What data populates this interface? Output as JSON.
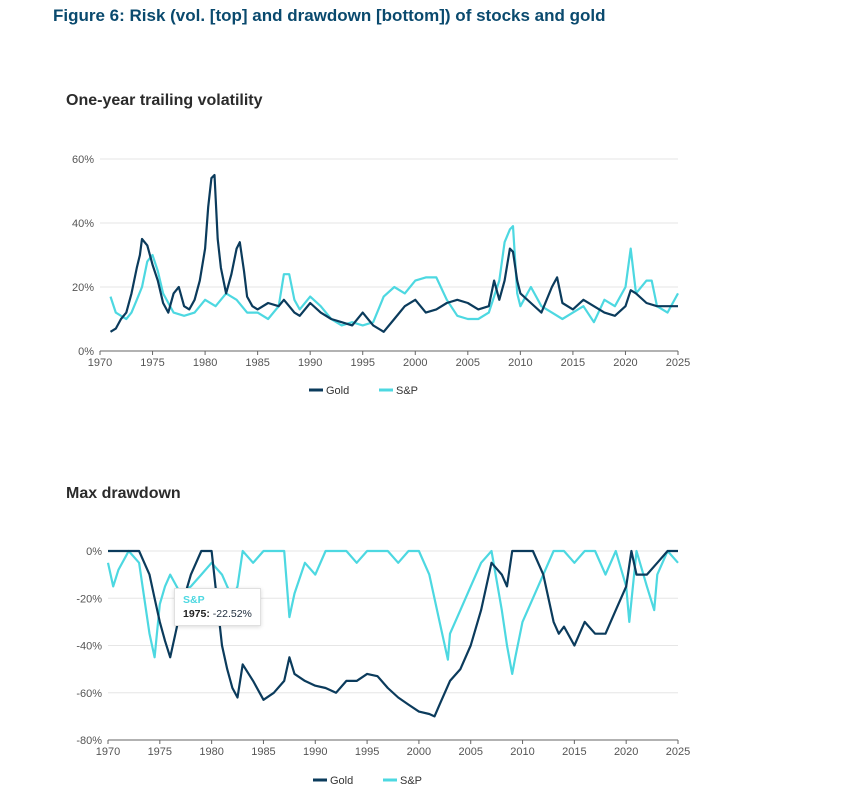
{
  "figure_title": "Figure 6: Risk (vol. [top] and drawdown [bottom]) of stocks and gold",
  "colors": {
    "gold": "#0b3b5c",
    "sp": "#4dd8e1"
  },
  "tooltip": {
    "series": "S&P",
    "year": "1975:",
    "value": "-22.52%"
  },
  "chart_data": [
    {
      "type": "line",
      "title": "One-year trailing volatility",
      "xlabel": "",
      "ylabel": "",
      "xlim": [
        1970,
        2025
      ],
      "ylim": [
        0,
        60
      ],
      "xticks": [
        "1970",
        "1975",
        "1980",
        "1985",
        "1990",
        "1995",
        "2000",
        "2005",
        "2010",
        "2015",
        "2020",
        "2025"
      ],
      "yticks": [
        "0%",
        "20%",
        "40%",
        "60%"
      ],
      "legend": [
        "Gold",
        "S&P"
      ],
      "legend_position": "bottom-center",
      "series": [
        {
          "name": "Gold",
          "x": [
            1971,
            1971.5,
            1972,
            1972.5,
            1973,
            1973.5,
            1973.8,
            1974,
            1974.5,
            1975,
            1975.5,
            1976,
            1976.5,
            1977,
            1977.5,
            1978,
            1978.5,
            1979,
            1979.5,
            1980,
            1980.3,
            1980.6,
            1980.9,
            1981.2,
            1981.5,
            1982,
            1982.5,
            1983,
            1983.3,
            1983.7,
            1984,
            1984.5,
            1985,
            1986,
            1987,
            1987.5,
            1988,
            1988.5,
            1989,
            1990,
            1991,
            1992,
            1993,
            1994,
            1995,
            1996,
            1997,
            1998,
            1999,
            2000,
            2001,
            2002,
            2003,
            2004,
            2005,
            2006,
            2007,
            2007.5,
            2008,
            2008.5,
            2009,
            2009.3,
            2009.7,
            2010,
            2011,
            2012,
            2013,
            2013.5,
            2014,
            2015,
            2016,
            2017,
            2018,
            2019,
            2020,
            2020.5,
            2021,
            2022,
            2023,
            2024,
            2025
          ],
          "y": [
            6,
            7,
            10,
            12,
            18,
            26,
            30,
            35,
            33,
            27,
            22,
            15,
            12,
            18,
            20,
            14,
            13,
            16,
            22,
            32,
            45,
            54,
            55,
            35,
            26,
            18,
            24,
            32,
            34,
            25,
            17,
            14,
            13,
            15,
            14,
            16,
            14,
            12,
            11,
            15,
            12,
            10,
            9,
            8,
            12,
            8,
            6,
            10,
            14,
            16,
            12,
            13,
            15,
            16,
            15,
            13,
            14,
            22,
            16,
            22,
            32,
            31,
            22,
            18,
            15,
            12,
            20,
            23,
            15,
            13,
            16,
            14,
            12,
            11,
            14,
            19,
            18,
            15,
            14,
            14,
            14
          ]
        },
        {
          "name": "S&P",
          "x": [
            1971,
            1971.5,
            1972,
            1972.5,
            1973,
            1973.5,
            1974,
            1974.5,
            1975,
            1975.5,
            1976,
            1977,
            1978,
            1979,
            1980,
            1981,
            1982,
            1983,
            1984,
            1985,
            1986,
            1987,
            1987.5,
            1988,
            1988.5,
            1989,
            1990,
            1991,
            1992,
            1993,
            1994,
            1995,
            1996,
            1997,
            1998,
            1999,
            2000,
            2001,
            2002,
            2003,
            2004,
            2005,
            2006,
            2007,
            2008,
            2008.5,
            2009,
            2009.3,
            2009.7,
            2010,
            2011,
            2012,
            2013,
            2014,
            2015,
            2016,
            2017,
            2018,
            2019,
            2020,
            2020.5,
            2021,
            2022,
            2022.5,
            2023,
            2024,
            2025
          ],
          "y": [
            17,
            12,
            11,
            10,
            12,
            16,
            20,
            28,
            30,
            25,
            18,
            12,
            11,
            12,
            16,
            14,
            18,
            16,
            12,
            12,
            10,
            14,
            24,
            24,
            16,
            13,
            17,
            14,
            10,
            8,
            9,
            8,
            9,
            17,
            20,
            18,
            22,
            23,
            23,
            16,
            11,
            10,
            10,
            12,
            22,
            34,
            38,
            39,
            18,
            14,
            20,
            14,
            12,
            10,
            12,
            14,
            9,
            16,
            14,
            20,
            32,
            18,
            22,
            22,
            14,
            12,
            18
          ]
        }
      ]
    },
    {
      "type": "line",
      "title": "Max drawdown",
      "xlabel": "",
      "ylabel": "",
      "xlim": [
        1970,
        2025
      ],
      "ylim": [
        -80,
        0
      ],
      "xticks": [
        "1970",
        "1975",
        "1980",
        "1985",
        "1990",
        "1995",
        "2000",
        "2005",
        "2010",
        "2015",
        "2020",
        "2025"
      ],
      "yticks": [
        "0%",
        "-20%",
        "-40%",
        "-60%",
        "-80%"
      ],
      "legend": [
        "Gold",
        "S&P"
      ],
      "legend_position": "bottom-center",
      "series": [
        {
          "name": "Gold",
          "x": [
            1970,
            1971,
            1972,
            1973,
            1973.5,
            1974,
            1974.5,
            1975,
            1975.5,
            1976,
            1976.5,
            1977,
            1978,
            1979,
            1980,
            1980.5,
            1981,
            1981.5,
            1982,
            1982.5,
            1983,
            1984,
            1985,
            1986,
            1987,
            1987.5,
            1988,
            1989,
            1990,
            1991,
            1992,
            1993,
            1994,
            1995,
            1996,
            1997,
            1998,
            1999,
            2000,
            2001,
            2001.5,
            2002,
            2003,
            2004,
            2005,
            2006,
            2007,
            2008,
            2008.5,
            2009,
            2010,
            2011,
            2012,
            2013,
            2013.5,
            2014,
            2015,
            2016,
            2017,
            2018,
            2019,
            2020,
            2020.5,
            2021,
            2022,
            2023,
            2024,
            2025
          ],
          "y": [
            0,
            0,
            0,
            0,
            -5,
            -10,
            -20,
            -30,
            -38,
            -45,
            -35,
            -25,
            -10,
            0,
            0,
            -20,
            -40,
            -50,
            -58,
            -62,
            -48,
            -55,
            -63,
            -60,
            -55,
            -45,
            -52,
            -55,
            -57,
            -58,
            -60,
            -55,
            -55,
            -52,
            -53,
            -58,
            -62,
            -65,
            -68,
            -69,
            -70,
            -65,
            -55,
            -50,
            -40,
            -25,
            -5,
            -10,
            -15,
            0,
            0,
            0,
            -10,
            -30,
            -35,
            -32,
            -40,
            -30,
            -35,
            -35,
            -25,
            -15,
            0,
            -10,
            -10,
            -5,
            0,
            0
          ]
        },
        {
          "name": "S&P",
          "x": [
            1970,
            1970.5,
            1971,
            1972,
            1973,
            1973.5,
            1974,
            1974.5,
            1975,
            1975.5,
            1976,
            1977,
            1978,
            1979,
            1980,
            1981,
            1982,
            1982.5,
            1983,
            1984,
            1985,
            1986,
            1987,
            1987.5,
            1988,
            1989,
            1990,
            1991,
            1992,
            1993,
            1994,
            1995,
            1996,
            1997,
            1998,
            1999,
            2000,
            2001,
            2002,
            2002.8,
            2003,
            2004,
            2005,
            2006,
            2007,
            2008,
            2008.5,
            2009,
            2009.3,
            2010,
            2011,
            2012,
            2013,
            2014,
            2015,
            2016,
            2017,
            2018,
            2019,
            2020,
            2020.3,
            2021,
            2022,
            2022.7,
            2023,
            2024,
            2025
          ],
          "y": [
            -5,
            -15,
            -8,
            0,
            -5,
            -20,
            -35,
            -45,
            -22.52,
            -15,
            -10,
            -18,
            -15,
            -10,
            -5,
            -10,
            -20,
            -15,
            0,
            -5,
            0,
            0,
            0,
            -28,
            -18,
            -5,
            -10,
            0,
            0,
            0,
            -5,
            0,
            0,
            0,
            -5,
            0,
            0,
            -10,
            -30,
            -46,
            -35,
            -25,
            -15,
            -5,
            0,
            -25,
            -40,
            -52,
            -45,
            -30,
            -20,
            -10,
            0,
            0,
            -5,
            0,
            0,
            -10,
            0,
            -15,
            -30,
            0,
            -15,
            -25,
            -10,
            0,
            -5
          ]
        }
      ]
    }
  ]
}
